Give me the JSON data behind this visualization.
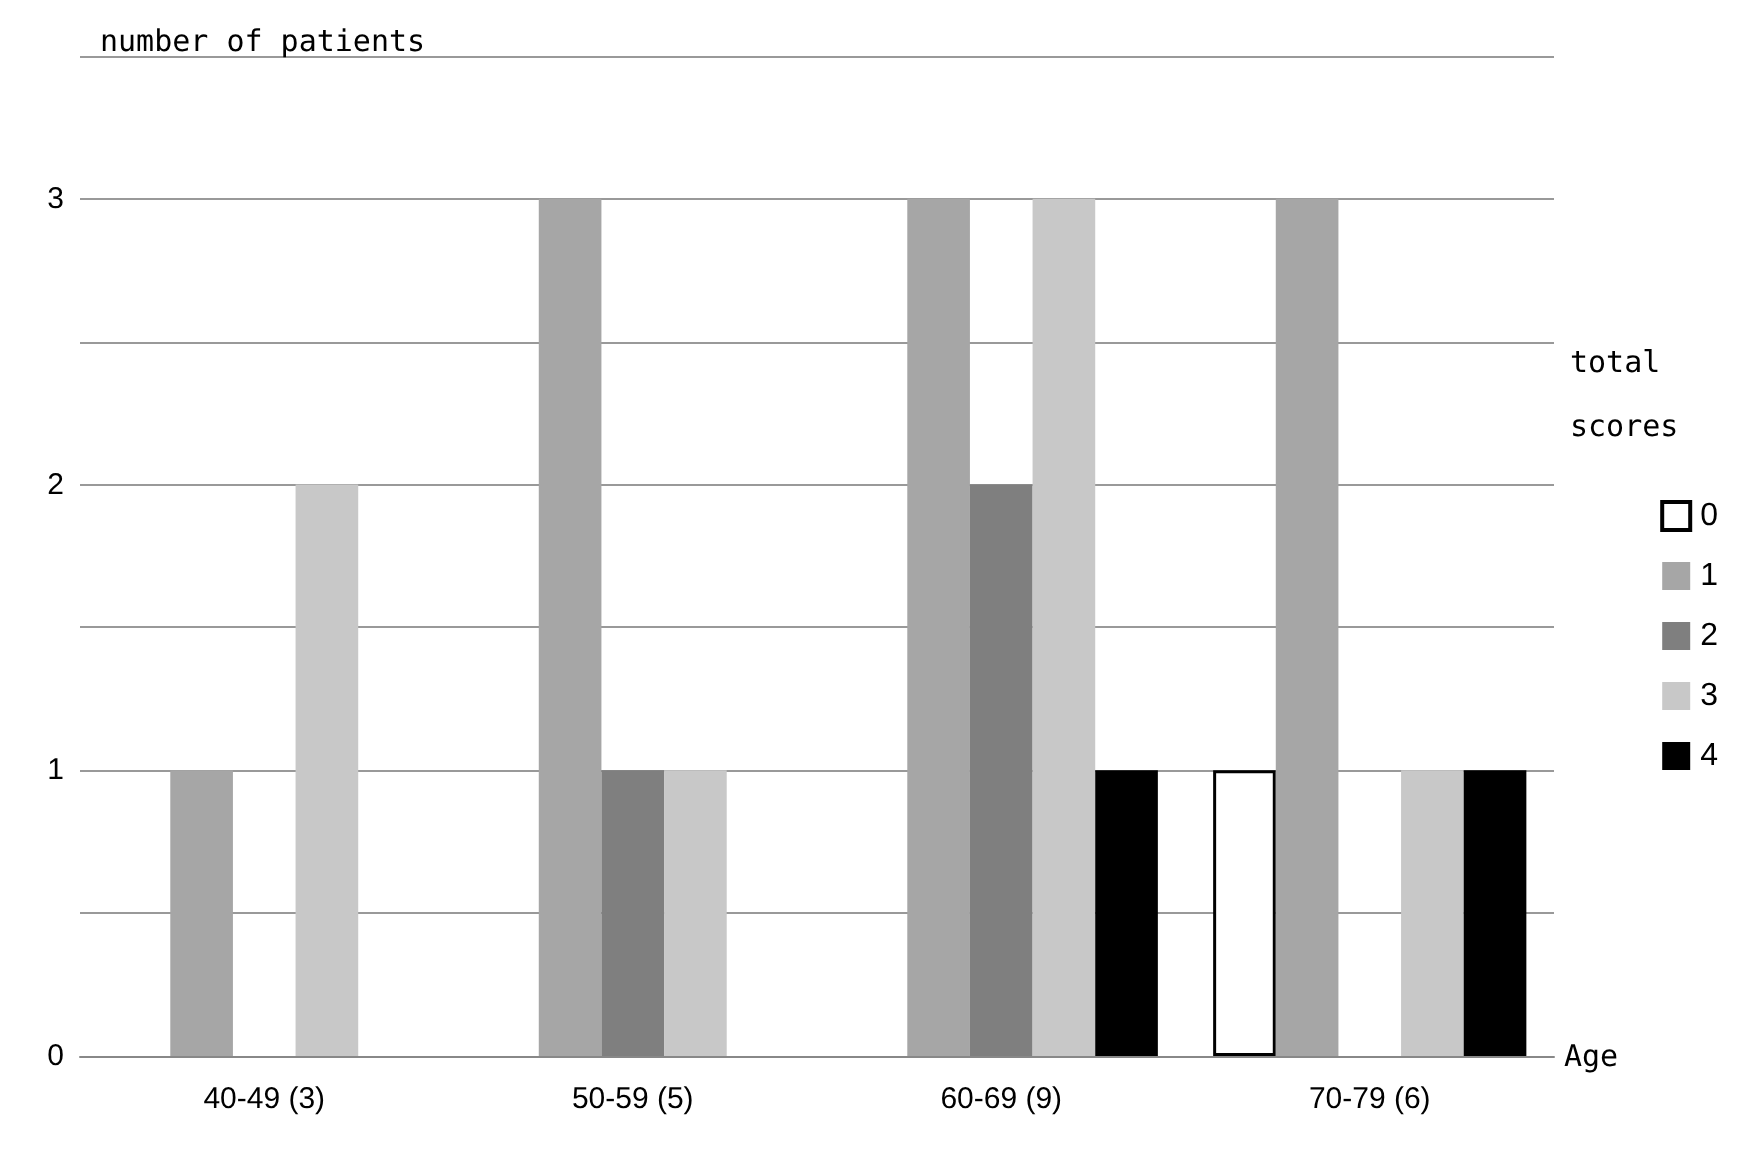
{
  "chart_data": {
    "type": "bar",
    "ylabel": "number of patients",
    "xlabel": "Age",
    "legend_title": "total scores",
    "categories": [
      "40-49 (3)",
      "50-59 (5)",
      "60-69 (9)",
      "70-79 (6)"
    ],
    "series": [
      {
        "name": "0",
        "color": "#ffffff",
        "values": [
          0,
          0,
          0,
          1
        ]
      },
      {
        "name": "1",
        "color": "#a6a6a6",
        "values": [
          1,
          3,
          3,
          3
        ]
      },
      {
        "name": "2",
        "color": "#7f7f7f",
        "values": [
          0,
          1,
          2,
          0
        ]
      },
      {
        "name": "3",
        "color": "#c8c8c8",
        "values": [
          2,
          1,
          3,
          1
        ]
      },
      {
        "name": "4",
        "color": "#000000",
        "values": [
          0,
          0,
          1,
          1
        ]
      }
    ],
    "ylim": [
      0,
      3.5
    ],
    "yticks": [
      0,
      {
        "value": 0.5,
        "label": null
      },
      1,
      {
        "value": 1.5,
        "label": null
      },
      2,
      {
        "value": 2.5,
        "label": null
      },
      3,
      {
        "value": 3.5,
        "label": null
      }
    ],
    "grid": "y",
    "legend": "right"
  }
}
